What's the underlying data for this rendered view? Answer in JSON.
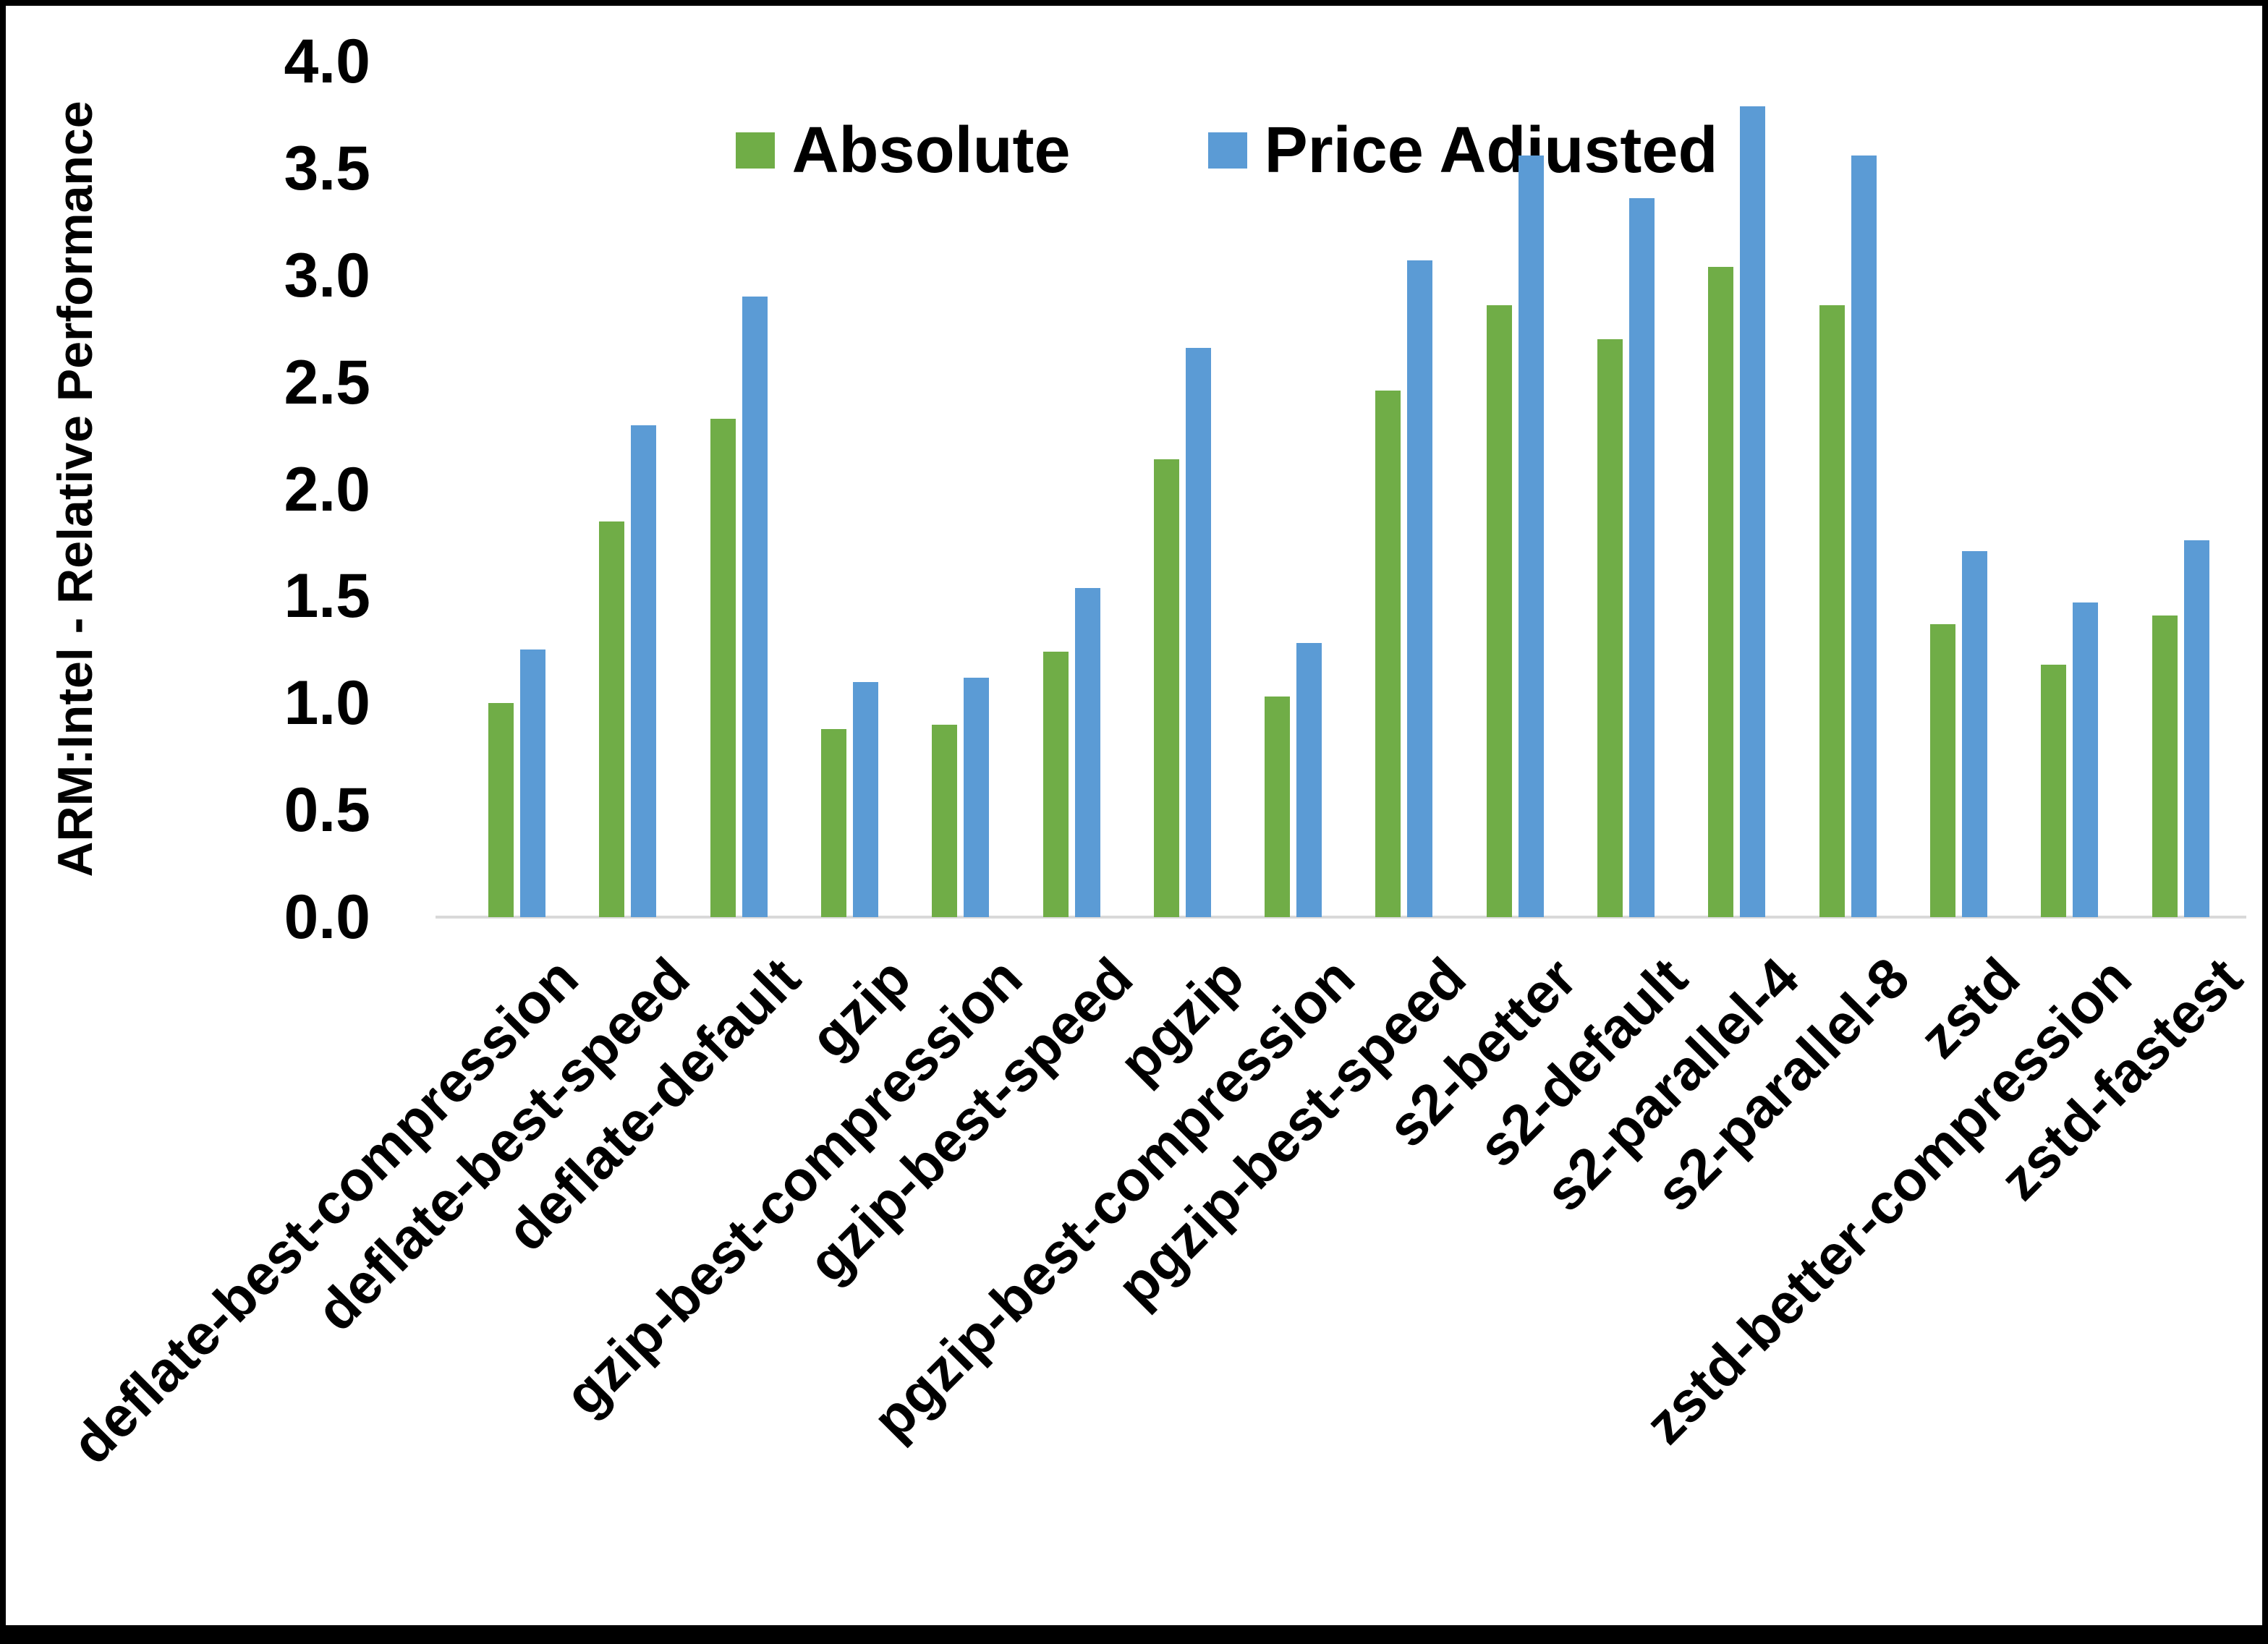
{
  "chart_data": {
    "type": "bar",
    "title": "",
    "xlabel": "",
    "ylabel": "ARM:Intel - Relative Performance",
    "ylim": [
      0.0,
      4.0
    ],
    "ytick_step": 0.5,
    "ytick_format_decimals": 1,
    "grid": false,
    "legend_position": "top-center",
    "categories": [
      "deflate-best-compression",
      "deflate-best-speed",
      "deflate-default",
      "gzip",
      "gzip-best-compression",
      "gzip-best-speed",
      "pgzip",
      "pgzip-best-compression",
      "pgzip-best-speed",
      "s2-better",
      "s2-default",
      "s2-parallel-4",
      "s2-parallel-8",
      "zstd",
      "zstd-better-compression",
      "zstd-fastest"
    ],
    "series": [
      {
        "name": "Absolute",
        "color": "#70AD47",
        "values": [
          1.0,
          1.85,
          2.33,
          0.88,
          0.9,
          1.24,
          2.14,
          1.03,
          2.46,
          2.86,
          2.7,
          3.04,
          2.86,
          1.37,
          1.18,
          1.41
        ]
      },
      {
        "name": "Price Adjusted",
        "color": "#5B9BD5",
        "values": [
          1.25,
          2.3,
          2.9,
          1.1,
          1.12,
          1.54,
          2.66,
          1.28,
          3.07,
          3.56,
          3.36,
          3.79,
          3.56,
          1.71,
          1.47,
          1.76
        ]
      }
    ]
  },
  "colors": {
    "absolute_green": "#70AD47",
    "price_adjusted_blue": "#5B9BD5",
    "axis_line_gray": "#D9D9D9",
    "text_black": "#000000",
    "frame_black": "#000000"
  }
}
